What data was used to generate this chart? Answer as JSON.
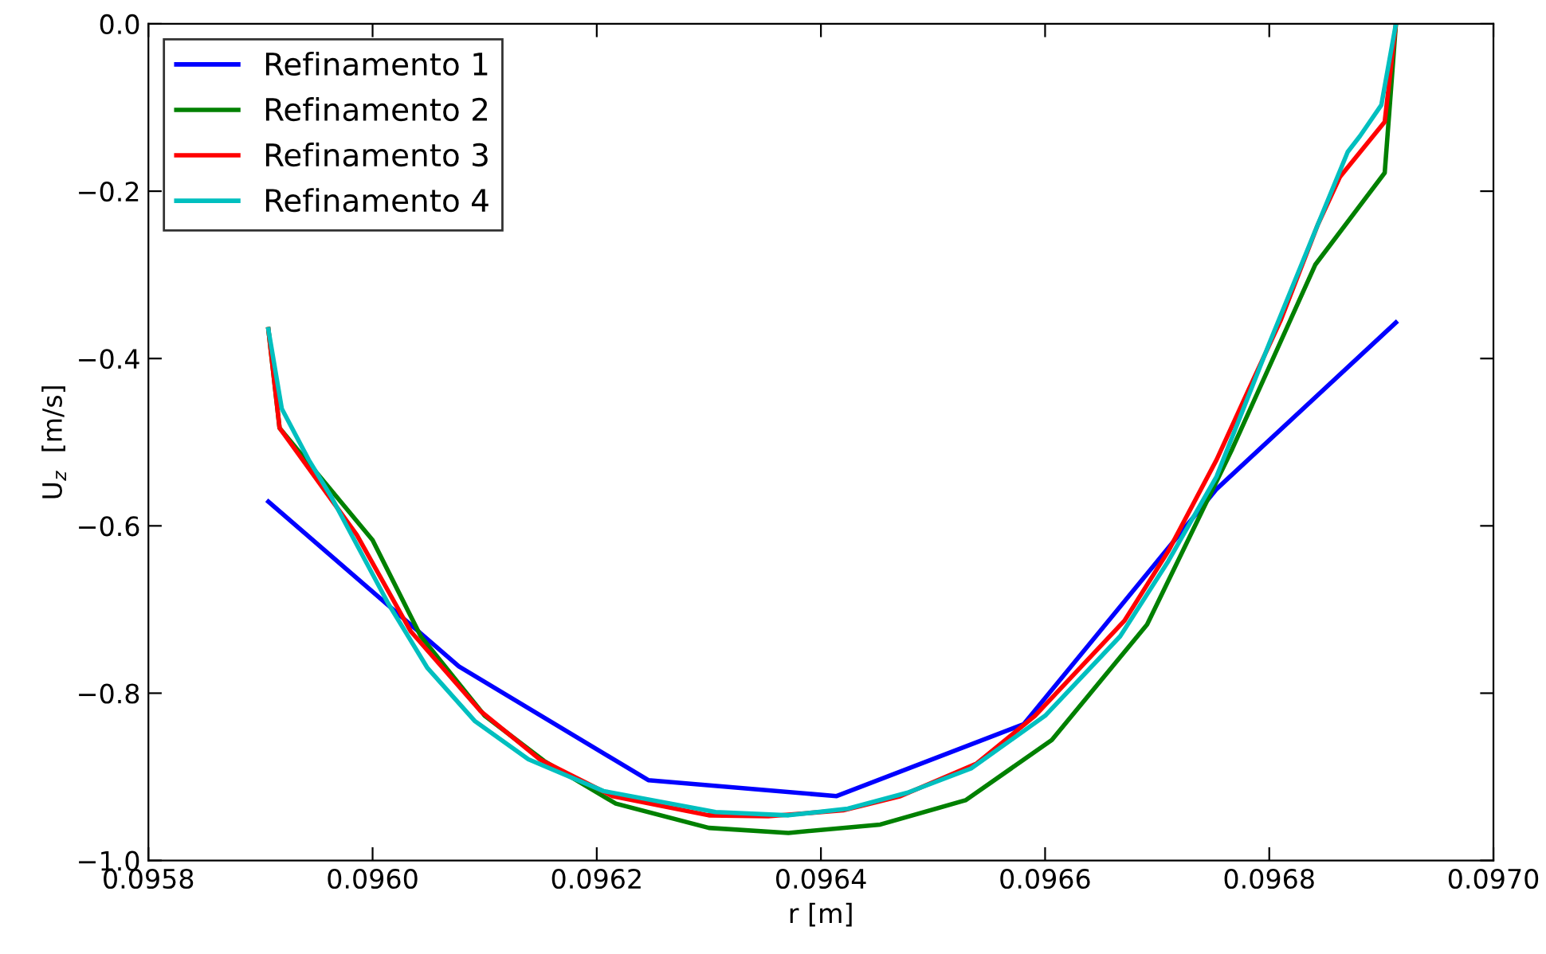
{
  "chart_data": {
    "type": "line",
    "xlabel": "r [m]",
    "ylabel": "U$_{z}$  [m/s]",
    "xlim": [
      0.0958,
      0.097
    ],
    "ylim": [
      -1.0,
      0.0
    ],
    "xticks": [
      {
        "value": 0.0958,
        "label": "0.0958"
      },
      {
        "value": 0.096,
        "label": "0.0960"
      },
      {
        "value": 0.0962,
        "label": "0.0962"
      },
      {
        "value": 0.0964,
        "label": "0.0964"
      },
      {
        "value": 0.0966,
        "label": "0.0966"
      },
      {
        "value": 0.0968,
        "label": "0.0968"
      },
      {
        "value": 0.097,
        "label": "0.0970"
      }
    ],
    "yticks": [
      {
        "value": -1.0,
        "label": "−1.0"
      },
      {
        "value": -0.8,
        "label": "−0.8"
      },
      {
        "value": -0.6,
        "label": "−0.6"
      },
      {
        "value": -0.4,
        "label": "−0.4"
      },
      {
        "value": -0.2,
        "label": "−0.2"
      },
      {
        "value": 0.0,
        "label": "0.0"
      }
    ],
    "grid": false,
    "legend": "top left",
    "line_style": "solid",
    "marker": "none",
    "series": [
      {
        "name": "Refinamento 1",
        "color": "#0000ff",
        "x": [
          0.095907,
          0.096077,
          0.096246,
          0.096414,
          0.096581,
          0.096753,
          0.096913
        ],
        "values": [
          -0.571,
          -0.768,
          -0.904,
          -0.923,
          -0.837,
          -0.556,
          -0.357
        ]
      },
      {
        "name": "Refinamento 2",
        "color": "#008000",
        "x": [
          0.095907,
          0.095917,
          0.096,
          0.096043,
          0.0961,
          0.096153,
          0.096217,
          0.0963,
          0.096371,
          0.096453,
          0.096529,
          0.096606,
          0.096691,
          0.096767,
          0.096841,
          0.096903,
          0.096913
        ],
        "values": [
          -0.365,
          -0.483,
          -0.617,
          -0.732,
          -0.827,
          -0.881,
          -0.932,
          -0.961,
          -0.967,
          -0.957,
          -0.928,
          -0.856,
          -0.718,
          -0.508,
          -0.288,
          -0.178,
          0.0
        ]
      },
      {
        "name": "Refinamento 3",
        "color": "#ff0000",
        "x": [
          0.095907,
          0.095917,
          0.095986,
          0.096034,
          0.096096,
          0.096149,
          0.096214,
          0.0963,
          0.096353,
          0.09642,
          0.096471,
          0.096539,
          0.096591,
          0.096671,
          0.09671,
          0.096753,
          0.096781,
          0.09681,
          0.096843,
          0.096863,
          0.096903,
          0.096913
        ],
        "values": [
          -0.365,
          -0.483,
          -0.611,
          -0.726,
          -0.821,
          -0.879,
          -0.923,
          -0.946,
          -0.947,
          -0.94,
          -0.923,
          -0.884,
          -0.827,
          -0.713,
          -0.63,
          -0.521,
          -0.439,
          -0.355,
          -0.241,
          -0.183,
          -0.117,
          0.0
        ]
      },
      {
        "name": "Refinamento 4",
        "color": "#00bfbf",
        "x": [
          0.095907,
          0.095919,
          0.095943,
          0.095963,
          0.096014,
          0.096049,
          0.096091,
          0.096139,
          0.096206,
          0.096306,
          0.096371,
          0.096424,
          0.096477,
          0.096534,
          0.0966,
          0.096667,
          0.09671,
          0.096753,
          0.0968,
          0.096839,
          0.09687,
          0.096881,
          0.0969,
          0.096913
        ],
        "values": [
          -0.365,
          -0.46,
          -0.521,
          -0.565,
          -0.693,
          -0.77,
          -0.833,
          -0.879,
          -0.917,
          -0.942,
          -0.946,
          -0.938,
          -0.919,
          -0.89,
          -0.827,
          -0.732,
          -0.642,
          -0.541,
          -0.382,
          -0.254,
          -0.153,
          -0.134,
          -0.097,
          0.0
        ]
      }
    ]
  }
}
